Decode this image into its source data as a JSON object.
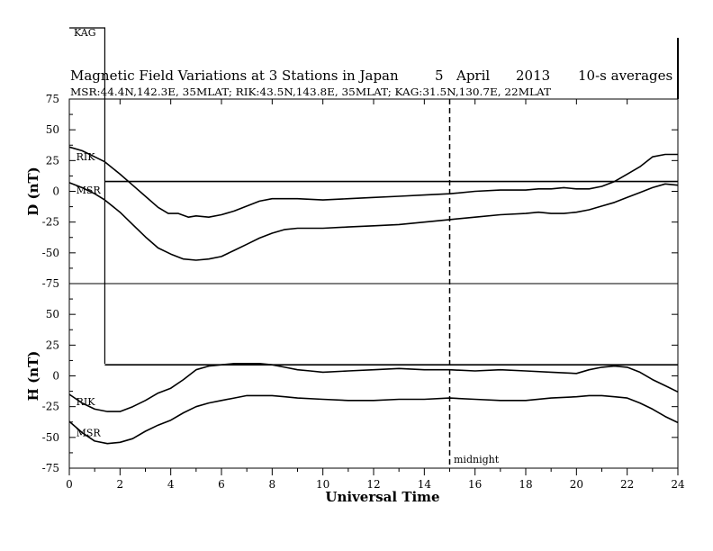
{
  "chart_data": {
    "type": "line",
    "title": "Magnetic Field Variations at 3 Stations in Japan",
    "date_day": "5",
    "date_month": "April",
    "date_year": "2013",
    "averaging": "10-s averages",
    "station_info": "MSR:44.4N,142.3E, 35MLAT;  RIK:43.5N,143.8E, 35MLAT;  KAG:31.5N,130.7E, 22MLAT",
    "xlabel": "Universal Time",
    "xlim": [
      0,
      24
    ],
    "x_ticks": [
      "0",
      "2",
      "4",
      "6",
      "8",
      "10",
      "12",
      "14",
      "16",
      "18",
      "20",
      "22",
      "24"
    ],
    "midnight_x": 15,
    "midnight_label": "midnight",
    "kag_label": "KAG",
    "panels": [
      {
        "ylabel": "D (nT)",
        "ylim": [
          -75,
          75
        ],
        "y_ticks": [
          "75",
          "50",
          "25",
          "0",
          "-25",
          "-50",
          "-75"
        ],
        "series": [
          {
            "name": "RIK",
            "x": [
              0,
              0.5,
              1,
              1.4,
              2,
              2.5,
              3,
              3.5,
              3.9,
              4.3,
              4.7,
              5,
              5.5,
              6,
              6.5,
              7,
              7.5,
              8,
              8.5,
              9,
              10,
              11,
              12,
              13,
              14,
              15,
              16,
              17,
              18,
              18.5,
              19,
              19.5,
              20,
              20.5,
              21,
              21.5,
              22,
              22.5,
              23,
              23.5,
              24
            ],
            "y": [
              36,
              33,
              28,
              24,
              14,
              5,
              -4,
              -13,
              -18,
              -18,
              -21,
              -20,
              -21,
              -19,
              -16,
              -12,
              -8,
              -6,
              -6,
              -6,
              -7,
              -6,
              -5,
              -4,
              -3,
              -2,
              0,
              1,
              1,
              2,
              2,
              3,
              2,
              2,
              4,
              8,
              14,
              20,
              28,
              30,
              30
            ],
            "label_x": 0.2,
            "label_y": 28
          },
          {
            "name": "MSR",
            "x": [
              0,
              0.5,
              1,
              1.4,
              2,
              2.5,
              3,
              3.5,
              4,
              4.5,
              5,
              5.5,
              6,
              6.5,
              7,
              7.5,
              8,
              8.5,
              9,
              10,
              11,
              12,
              13,
              14,
              15,
              16,
              17,
              18,
              18.5,
              19,
              19.5,
              20,
              20.5,
              21,
              21.5,
              22,
              22.5,
              23,
              23.5,
              24
            ],
            "y": [
              7,
              3,
              -2,
              -7,
              -17,
              -27,
              -37,
              -46,
              -51,
              -55,
              -56,
              -55,
              -53,
              -48,
              -43,
              -38,
              -34,
              -31,
              -30,
              -30,
              -29,
              -28,
              -27,
              -25,
              -23,
              -21,
              -19,
              -18,
              -17,
              -18,
              -18,
              -17,
              -15,
              -12,
              -9,
              -5,
              -1,
              3,
              6,
              5
            ],
            "label_x": 0.2,
            "label_y": 1
          },
          {
            "name": "KAG",
            "x": [
              1.4,
              5,
              8,
              10,
              12,
              14,
              15,
              16,
              18,
              20,
              21,
              22,
              22.5,
              23,
              23.5,
              24
            ],
            "y": [
              8,
              8,
              8,
              8,
              8,
              8,
              8,
              8,
              8,
              8,
              8,
              8,
              8,
              8,
              8,
              8
            ]
          }
        ]
      },
      {
        "ylabel": "H (nT)",
        "ylim": [
          -75,
          75
        ],
        "y_ticks": [
          "75",
          "50",
          "25",
          "0",
          "-25",
          "-50",
          "-75"
        ],
        "series": [
          {
            "name": "RIK",
            "x": [
              0,
              0.5,
              1,
              1.5,
              2,
              2.5,
              3,
              3.5,
              4,
              4.5,
              5,
              5.5,
              6,
              6.5,
              7,
              7.5,
              8,
              8.5,
              9,
              9.5,
              10,
              11,
              12,
              13,
              14,
              15,
              16,
              17,
              18,
              19,
              20,
              20.5,
              21,
              21.5,
              22,
              22.5,
              23,
              23.5,
              24
            ],
            "y": [
              -15,
              -22,
              -27,
              -29,
              -29,
              -25,
              -20,
              -14,
              -10,
              -3,
              5,
              8,
              9,
              10,
              10,
              10,
              9,
              7,
              5,
              4,
              3,
              4,
              5,
              6,
              5,
              5,
              4,
              5,
              4,
              3,
              2,
              5,
              7,
              8,
              7,
              3,
              -3,
              -8,
              -13
            ],
            "label_x": 0.2,
            "label_y": -21
          },
          {
            "name": "MSR",
            "x": [
              0,
              0.5,
              1,
              1.5,
              2,
              2.5,
              3,
              3.5,
              4,
              4.5,
              5,
              5.5,
              6,
              6.5,
              7,
              7.5,
              8,
              8.5,
              9,
              10,
              11,
              12,
              13,
              14,
              15,
              16,
              17,
              18,
              19,
              20,
              20.5,
              21,
              21.5,
              22,
              22.5,
              23,
              23.5,
              24
            ],
            "y": [
              -37,
              -46,
              -53,
              -55,
              -54,
              -51,
              -45,
              -40,
              -36,
              -30,
              -25,
              -22,
              -20,
              -18,
              -16,
              -16,
              -16,
              -17,
              -18,
              -19,
              -20,
              -20,
              -19,
              -19,
              -18,
              -19,
              -20,
              -20,
              -18,
              -17,
              -16,
              -16,
              -17,
              -18,
              -22,
              -27,
              -33,
              -38
            ],
            "label_x": 0.2,
            "label_y": -46
          },
          {
            "name": "KAG",
            "x": [
              1.4,
              5,
              8,
              10,
              12,
              14,
              15,
              16,
              18,
              20,
              22,
              24
            ],
            "y": [
              9,
              9,
              9,
              9,
              9,
              9,
              9,
              9,
              9,
              9,
              9,
              9
            ]
          }
        ]
      }
    ]
  }
}
